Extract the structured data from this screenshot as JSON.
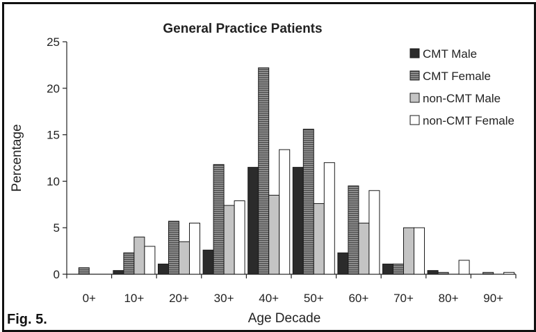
{
  "figure_label": "Fig. 5.",
  "chart_data": {
    "type": "bar",
    "title": "General Practice Patients",
    "xlabel": "Age Decade",
    "ylabel": "Percentage",
    "ylim": [
      0,
      25
    ],
    "yticks": [
      0,
      5,
      10,
      15,
      20,
      25
    ],
    "grid": false,
    "legend_position": "top-right",
    "categories": [
      "0+",
      "10+",
      "20+",
      "30+",
      "40+",
      "50+",
      "60+",
      "70+",
      "80+",
      "90+"
    ],
    "series": [
      {
        "name": "CMT Male",
        "pattern": "solid-dark",
        "color": "#2b2b2b",
        "values": [
          0,
          0.4,
          1.1,
          2.6,
          11.5,
          11.5,
          2.3,
          1.1,
          0.4,
          0
        ]
      },
      {
        "name": "CMT Female",
        "pattern": "horizontal-stripes",
        "color": "#707070",
        "values": [
          0.7,
          2.3,
          5.7,
          11.8,
          22.2,
          15.6,
          9.5,
          1.1,
          0.2,
          0.2
        ]
      },
      {
        "name": "non-CMT Male",
        "pattern": "solid-light",
        "color": "#c4c4c4",
        "values": [
          0,
          4.0,
          3.5,
          7.4,
          8.5,
          7.6,
          5.5,
          5.0,
          0,
          0
        ]
      },
      {
        "name": "non-CMT Female",
        "pattern": "white",
        "color": "#ffffff",
        "values": [
          0,
          3.0,
          5.5,
          7.9,
          13.4,
          12.0,
          9.0,
          5.0,
          1.5,
          0.2
        ]
      }
    ]
  }
}
